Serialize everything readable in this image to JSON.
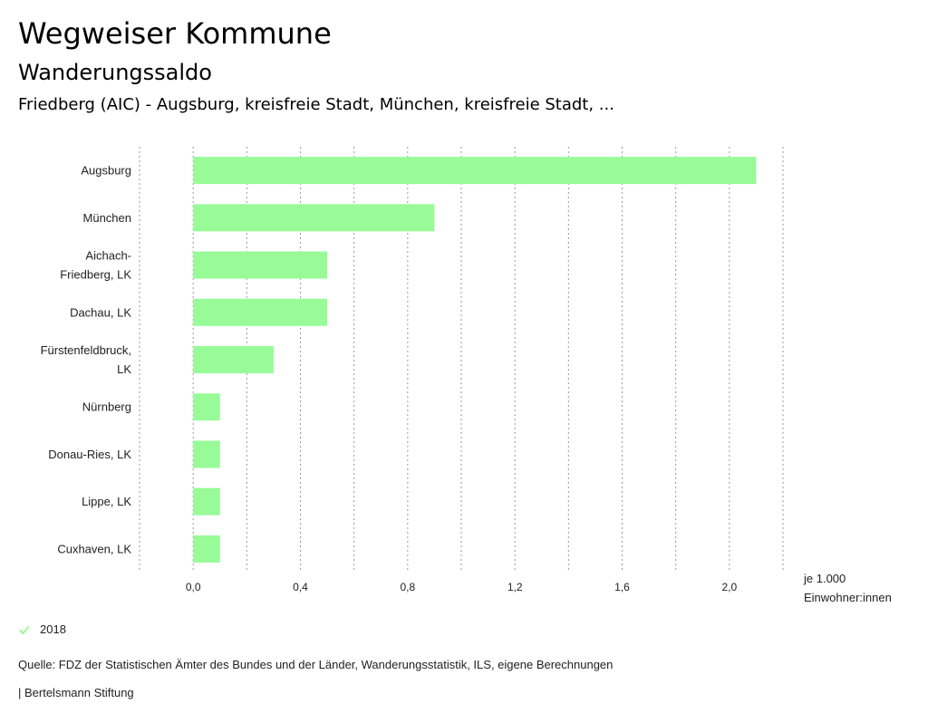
{
  "header": {
    "title": "Wegweiser Kommune",
    "subtitle": "Wanderungssaldo",
    "context": "Friedberg (AIC) - Augsburg, kreisfreie Stadt, München, kreisfreie Stadt, ..."
  },
  "axis": {
    "unit_line1": "je 1.000",
    "unit_line2": "Einwohner:innen"
  },
  "legend": {
    "label": "2018",
    "color": "#98fb98"
  },
  "footer": {
    "source": "Quelle: FDZ der Statistischen Ämter des Bundes und der Länder, Wanderungsstatistik, ILS, eigene Berechnungen",
    "brand": "| Bertelsmann Stiftung"
  },
  "chart_data": {
    "type": "bar",
    "orientation": "horizontal",
    "title": "Wanderungssaldo",
    "xlabel": "je 1.000 Einwohner:innen",
    "ylabel": "",
    "categories": [
      [
        "Augsburg"
      ],
      [
        "München"
      ],
      [
        "Aichach-",
        "Friedberg, LK"
      ],
      [
        "Dachau, LK"
      ],
      [
        "Fürstenfeldbruck,",
        "LK"
      ],
      [
        "Nürnberg"
      ],
      [
        "Donau-Ries, LK"
      ],
      [
        "Lippe, LK"
      ],
      [
        "Cuxhaven, LK"
      ]
    ],
    "series": [
      {
        "name": "2018",
        "color": "#98fb98",
        "values": [
          2.1,
          0.9,
          0.5,
          0.5,
          0.3,
          0.1,
          0.1,
          0.1,
          0.1
        ]
      }
    ],
    "xlim": [
      -0.2,
      2.2
    ],
    "xticks": [
      0,
      0.4,
      0.8,
      1.2,
      1.6,
      2.0
    ],
    "xtick_labels": [
      "0,0",
      "0,4",
      "0,8",
      "1,2",
      "1,6",
      "2,0"
    ],
    "grid_step": 0.2,
    "grid": true
  }
}
